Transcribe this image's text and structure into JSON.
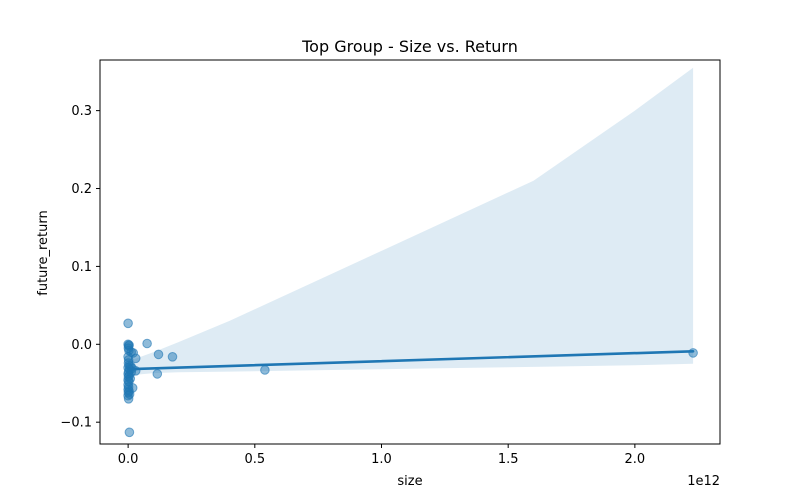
{
  "chart_data": {
    "type": "scatter",
    "title": "Top Group - Size vs. Return",
    "xlabel": "size",
    "ylabel": "future_return",
    "x_offset_label": "1e12",
    "xlim": [
      -0.111,
      2.336
    ],
    "ylim": [
      -0.128,
      0.365
    ],
    "grid": false,
    "colors": {
      "points": "#1f77b4",
      "line": "#1f77b4",
      "band": "#1f77b4"
    },
    "x_ticks": [
      {
        "value": 0.0,
        "label": "0.0"
      },
      {
        "value": 0.5,
        "label": "0.5"
      },
      {
        "value": 1.0,
        "label": "1.0"
      },
      {
        "value": 1.5,
        "label": "1.5"
      },
      {
        "value": 2.0,
        "label": "2.0"
      }
    ],
    "y_ticks": [
      {
        "value": -0.1,
        "label": "−0.1"
      },
      {
        "value": 0.0,
        "label": "0.0"
      },
      {
        "value": 0.1,
        "label": "0.1"
      },
      {
        "value": 0.2,
        "label": "0.2"
      },
      {
        "value": 0.3,
        "label": "0.3"
      }
    ],
    "points": [
      {
        "x": 0.0,
        "y": 0.027
      },
      {
        "x": 0.0,
        "y": 0.0
      },
      {
        "x": 0.002,
        "y": -0.002
      },
      {
        "x": 0.004,
        "y": -0.001
      },
      {
        "x": 0.001,
        "y": -0.005
      },
      {
        "x": 0.003,
        "y": -0.008
      },
      {
        "x": 0.012,
        "y": -0.01
      },
      {
        "x": 0.02,
        "y": -0.011
      },
      {
        "x": 0.0,
        "y": -0.016
      },
      {
        "x": 0.03,
        "y": -0.018
      },
      {
        "x": 0.002,
        "y": -0.02
      },
      {
        "x": 0.001,
        "y": -0.024
      },
      {
        "x": 0.004,
        "y": -0.027
      },
      {
        "x": 0.01,
        "y": -0.028
      },
      {
        "x": 0.0,
        "y": -0.03
      },
      {
        "x": 0.016,
        "y": -0.031
      },
      {
        "x": 0.006,
        "y": -0.032
      },
      {
        "x": 0.03,
        "y": -0.034
      },
      {
        "x": 0.002,
        "y": -0.035
      },
      {
        "x": 0.012,
        "y": -0.036
      },
      {
        "x": 0.0,
        "y": -0.038
      },
      {
        "x": 0.004,
        "y": -0.04
      },
      {
        "x": 0.001,
        "y": -0.042
      },
      {
        "x": 0.008,
        "y": -0.044
      },
      {
        "x": 0.0,
        "y": -0.046
      },
      {
        "x": 0.003,
        "y": -0.048
      },
      {
        "x": 0.0,
        "y": -0.052
      },
      {
        "x": 0.002,
        "y": -0.055
      },
      {
        "x": 0.018,
        "y": -0.056
      },
      {
        "x": 0.0,
        "y": -0.058
      },
      {
        "x": 0.004,
        "y": -0.06
      },
      {
        "x": 0.001,
        "y": -0.062
      },
      {
        "x": 0.006,
        "y": -0.064
      },
      {
        "x": 0.0,
        "y": -0.066
      },
      {
        "x": 0.002,
        "y": -0.07
      },
      {
        "x": 0.005,
        "y": -0.113
      },
      {
        "x": 0.075,
        "y": 0.001
      },
      {
        "x": 0.12,
        "y": -0.013
      },
      {
        "x": 0.175,
        "y": -0.016
      },
      {
        "x": 0.115,
        "y": -0.038
      },
      {
        "x": 0.54,
        "y": -0.033
      },
      {
        "x": 2.23,
        "y": -0.011
      }
    ],
    "regression": {
      "x": [
        0.0,
        2.23
      ],
      "y": [
        -0.032,
        -0.009
      ]
    },
    "ci_band": {
      "x": [
        0.0,
        0.1,
        0.2,
        0.4,
        0.8,
        1.2,
        1.6,
        2.0,
        2.23
      ],
      "upper": [
        -0.022,
        -0.01,
        0.003,
        0.03,
        0.09,
        0.15,
        0.21,
        0.3,
        0.355
      ],
      "lower": [
        -0.04,
        -0.037,
        -0.036,
        -0.035,
        -0.033,
        -0.031,
        -0.029,
        -0.027,
        -0.025
      ]
    }
  }
}
